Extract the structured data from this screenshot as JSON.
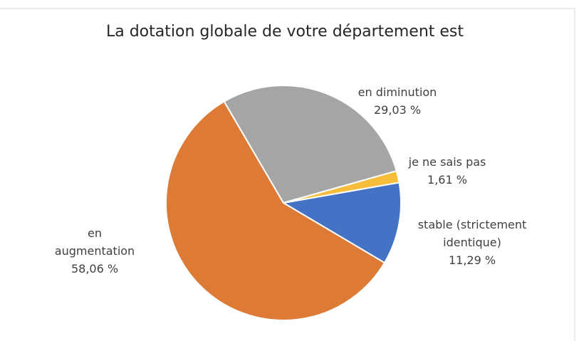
{
  "chart_data": {
    "type": "pie",
    "title": "La dotation globale de votre département est",
    "categories": [
      "stable (strictement identique)",
      "en augmentation",
      "en diminution",
      "je ne sais pas"
    ],
    "values": [
      11.29,
      58.06,
      29.03,
      1.61
    ],
    "value_labels": [
      "11,29 %",
      "58,06 %",
      "29,03 %",
      "1,61 %"
    ],
    "colors": [
      "#4472c4",
      "#dd7b36",
      "#a5a5a5",
      "#f5bd3a"
    ]
  }
}
